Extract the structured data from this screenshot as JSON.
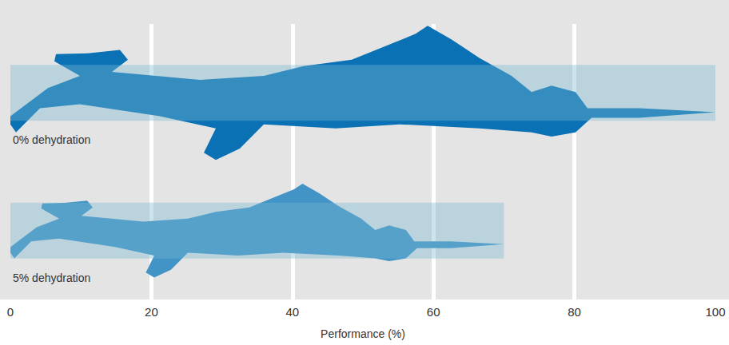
{
  "chart_data": {
    "type": "bar",
    "orientation": "horizontal",
    "categories": [
      "0% dehydration",
      "5% dehydration"
    ],
    "values": [
      100,
      70
    ],
    "colors": [
      "#0a72b4",
      "#4293c6"
    ],
    "marker": "swimmer",
    "xlabel": "Performance (%)",
    "xlim": [
      0,
      100
    ],
    "xticks": [
      0,
      20,
      40,
      60,
      80,
      100
    ],
    "grid": true
  }
}
